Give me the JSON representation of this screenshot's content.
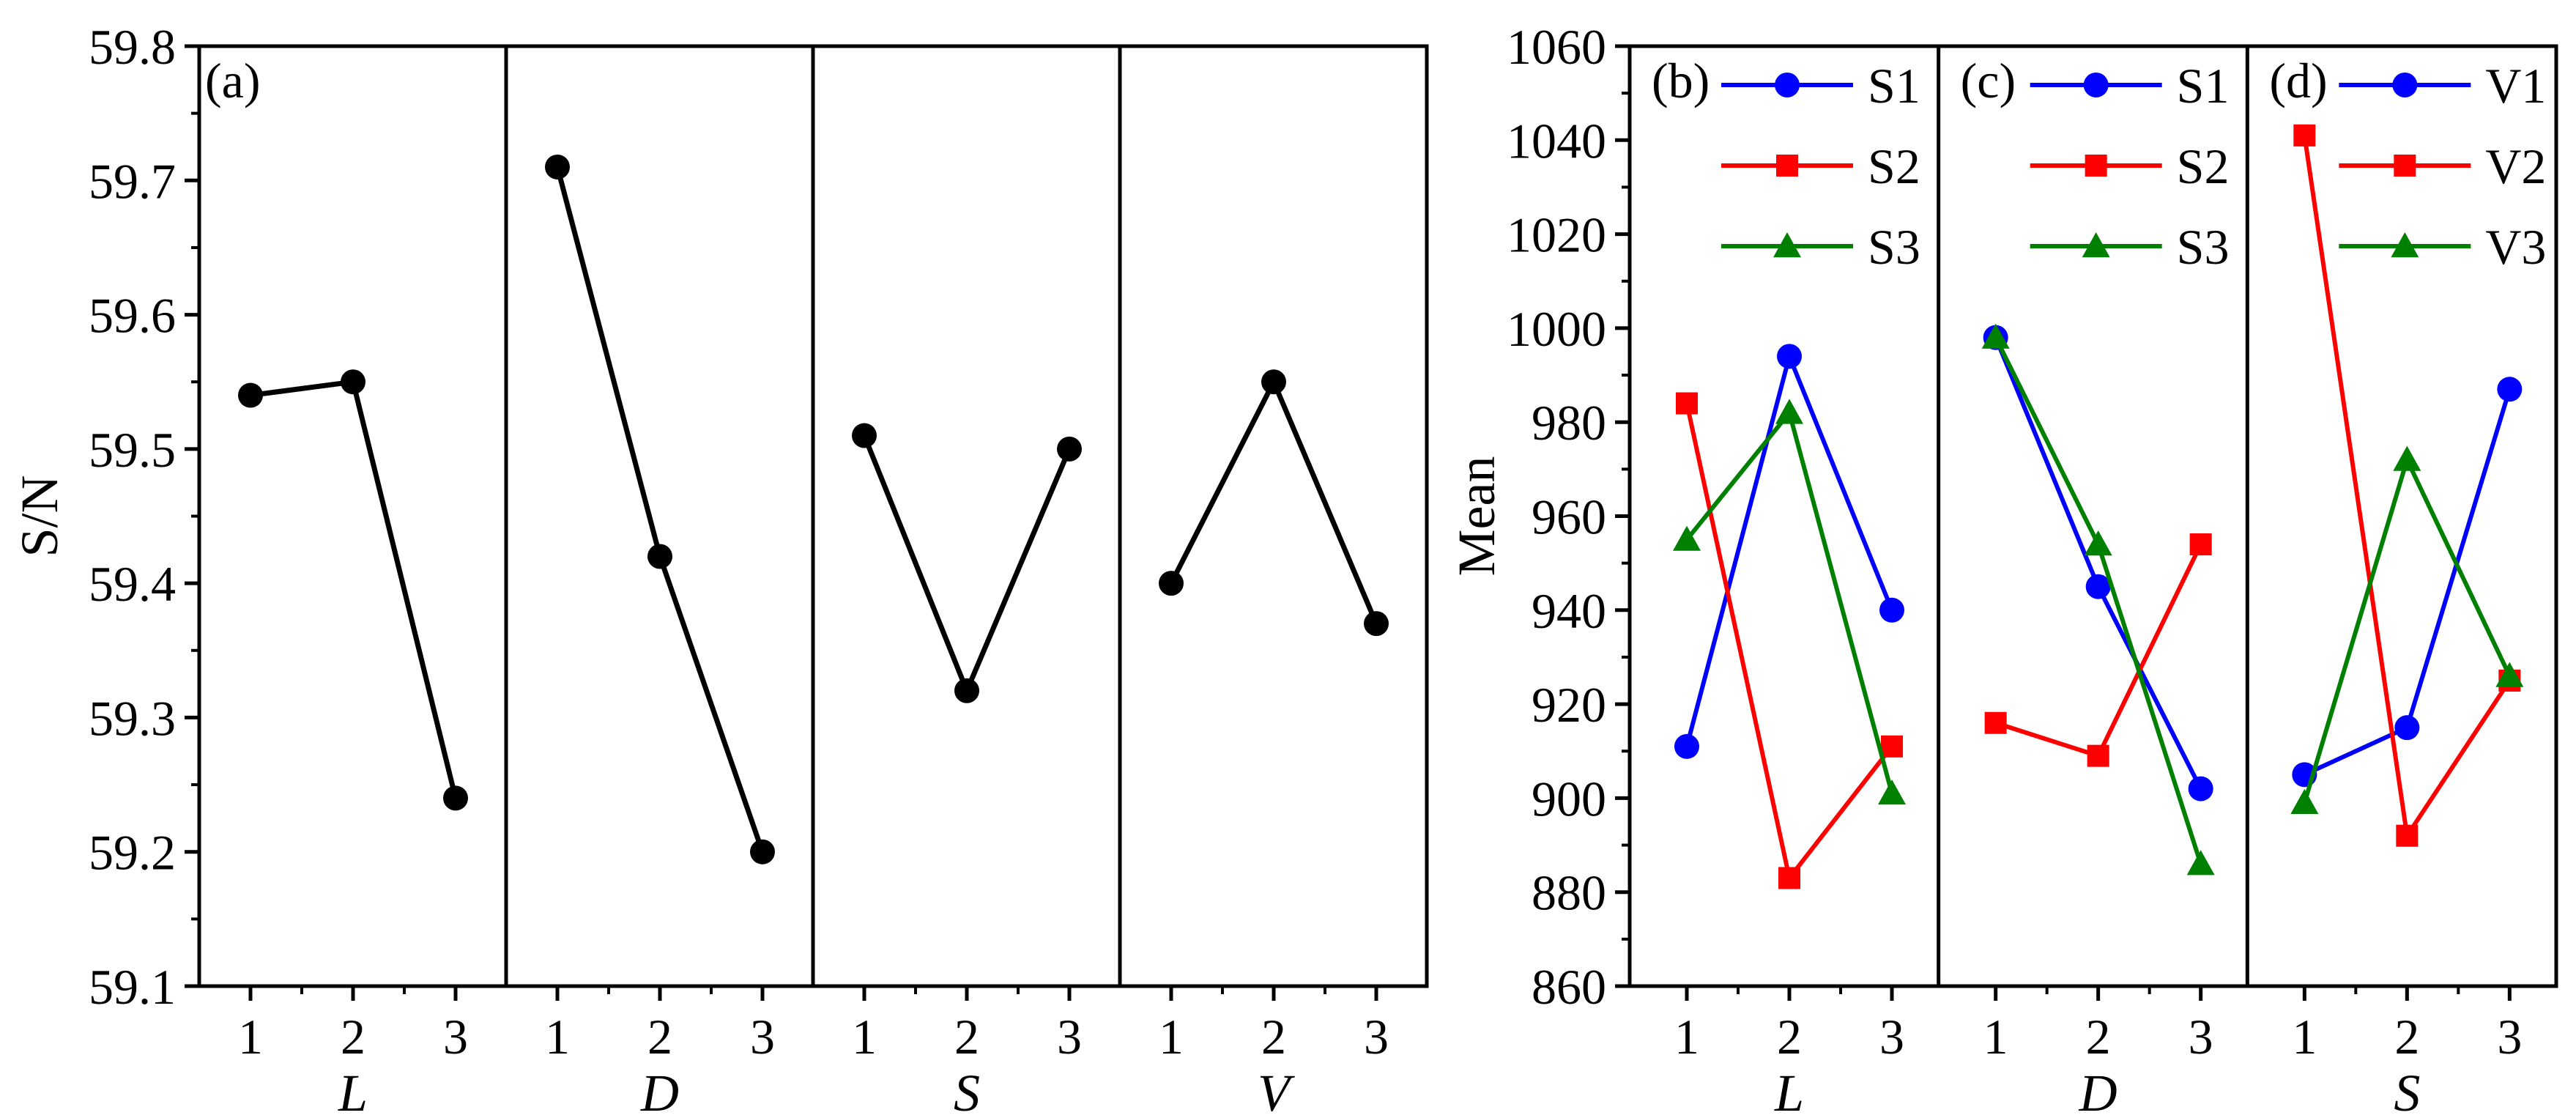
{
  "chart_data": [
    {
      "type": "line",
      "panel_label": "(a)",
      "ylabel": "S/N",
      "ylim": [
        59.1,
        59.8
      ],
      "yticks": [
        "59.1",
        "59.2",
        "59.3",
        "59.4",
        "59.5",
        "59.6",
        "59.7",
        "59.8"
      ],
      "subplots": [
        {
          "xlabel": "L",
          "x": [
            "1",
            "2",
            "3"
          ],
          "values": [
            59.54,
            59.55,
            59.24
          ]
        },
        {
          "xlabel": "D",
          "x": [
            "1",
            "2",
            "3"
          ],
          "values": [
            59.71,
            59.42,
            59.2
          ]
        },
        {
          "xlabel": "S",
          "x": [
            "1",
            "2",
            "3"
          ],
          "values": [
            59.51,
            59.32,
            59.5
          ]
        },
        {
          "xlabel": "V",
          "x": [
            "1",
            "2",
            "3"
          ],
          "values": [
            59.4,
            59.55,
            59.37
          ]
        }
      ],
      "color": "#000000"
    },
    {
      "type": "line",
      "ylabel": "Mean",
      "ylim": [
        860,
        1060
      ],
      "yticks": [
        "860",
        "880",
        "900",
        "920",
        "940",
        "960",
        "980",
        "1000",
        "1020",
        "1040",
        "1060"
      ],
      "legend_placement": "top-right of each sub-panel",
      "subplots": [
        {
          "panel_label": "(b)",
          "xlabel": "L",
          "x": [
            "1",
            "2",
            "3"
          ],
          "series": [
            {
              "name": "S1",
              "color": "#0000ff",
              "marker": "circle",
              "values": [
                911,
                994,
                940
              ]
            },
            {
              "name": "S2",
              "color": "#ff0000",
              "marker": "square",
              "values": [
                984,
                883,
                911
              ]
            },
            {
              "name": "S3",
              "color": "#008000",
              "marker": "triangle",
              "values": [
                955,
                982,
                901
              ]
            }
          ]
        },
        {
          "panel_label": "(c)",
          "xlabel": "D",
          "x": [
            "1",
            "2",
            "3"
          ],
          "series": [
            {
              "name": "S1",
              "color": "#0000ff",
              "marker": "circle",
              "values": [
                998,
                945,
                902
              ]
            },
            {
              "name": "S2",
              "color": "#ff0000",
              "marker": "square",
              "values": [
                916,
                909,
                954
              ]
            },
            {
              "name": "S3",
              "color": "#008000",
              "marker": "triangle",
              "values": [
                998,
                954,
                886
              ]
            }
          ]
        },
        {
          "panel_label": "(d)",
          "xlabel": "S",
          "x": [
            "1",
            "2",
            "3"
          ],
          "series": [
            {
              "name": "V1",
              "color": "#0000ff",
              "marker": "circle",
              "values": [
                905,
                915,
                987
              ]
            },
            {
              "name": "V2",
              "color": "#ff0000",
              "marker": "square",
              "values": [
                1041,
                892,
                925
              ]
            },
            {
              "name": "V3",
              "color": "#008000",
              "marker": "triangle",
              "values": [
                899,
                972,
                926
              ]
            }
          ]
        }
      ]
    }
  ]
}
